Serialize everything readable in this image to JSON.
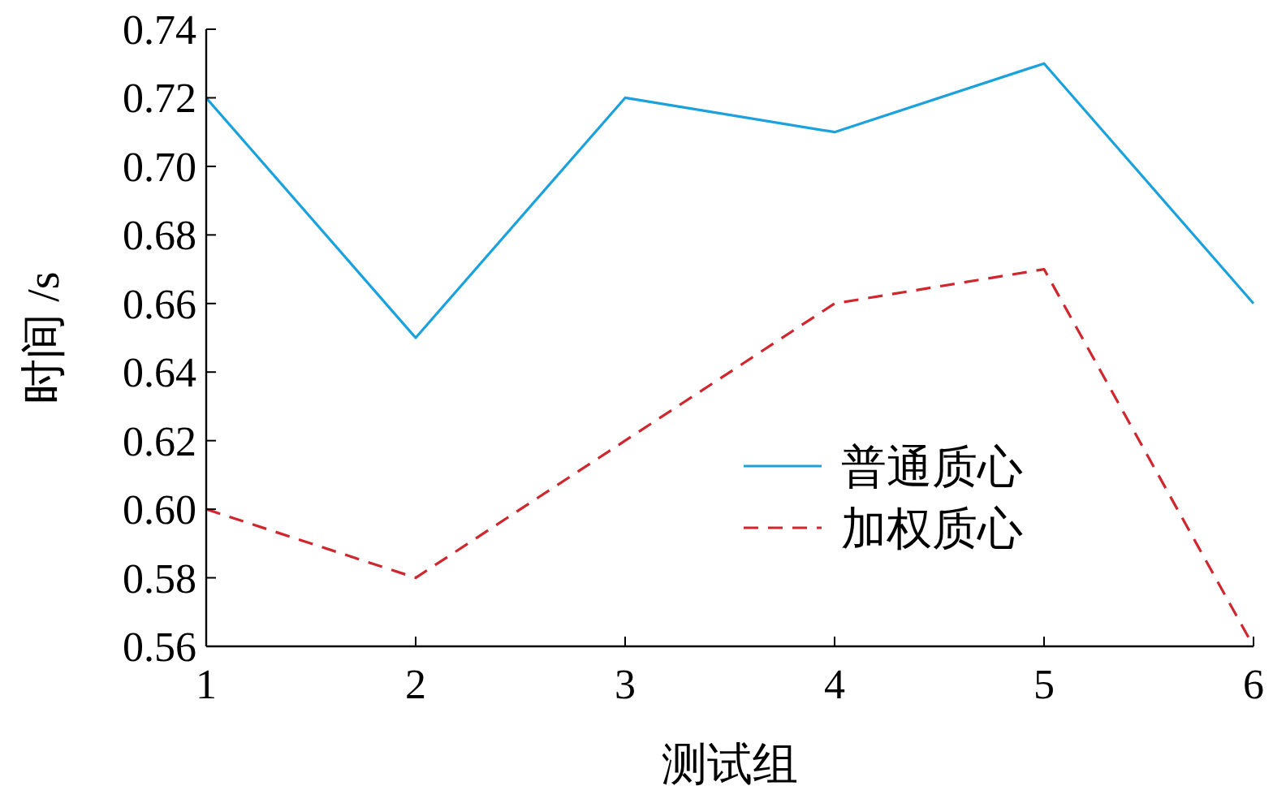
{
  "chart_data": {
    "type": "line",
    "xlabel": "测试组",
    "ylabel": "时间 /s",
    "x": [
      1,
      2,
      3,
      4,
      5,
      6
    ],
    "series": [
      {
        "name": "普通质心",
        "color": "#1ba1dc",
        "line_style": "solid",
        "values": [
          0.72,
          0.65,
          0.72,
          0.71,
          0.73,
          0.66
        ]
      },
      {
        "name": "加权质心",
        "color": "#d0262d",
        "line_style": "dashed",
        "values": [
          0.6,
          0.58,
          0.62,
          0.66,
          0.67,
          0.56
        ]
      }
    ],
    "xlim": [
      1,
      6
    ],
    "xticks": [
      1,
      2,
      3,
      4,
      5,
      6
    ],
    "ylim": [
      0.56,
      0.74
    ],
    "yticks": [
      {
        "value": 0.56,
        "label": "0.56"
      },
      {
        "value": 0.58,
        "label": "0.58"
      },
      {
        "value": 0.6,
        "label": "0.60"
      },
      {
        "value": 0.62,
        "label": "0.62"
      },
      {
        "value": 0.64,
        "label": "0.64"
      },
      {
        "value": 0.66,
        "label": "0.66"
      },
      {
        "value": 0.68,
        "label": "0.68"
      },
      {
        "value": 0.7,
        "label": "0.70"
      },
      {
        "value": 0.72,
        "label": "0.72"
      },
      {
        "value": 0.74,
        "label": "0.74"
      }
    ],
    "legend": "right",
    "grid": false
  }
}
